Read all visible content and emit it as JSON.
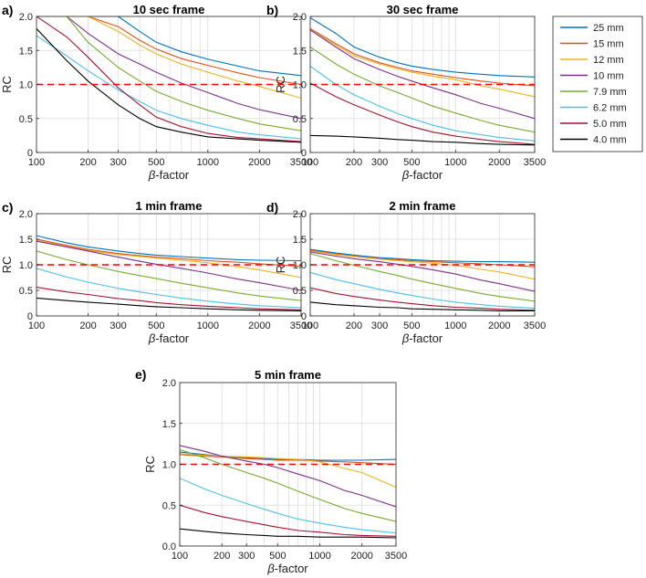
{
  "figure": {
    "ref_label": "RC",
    "ref_value": 1.0
  },
  "legend": {
    "placement": "top-right",
    "entries": [
      {
        "name": "25 mm",
        "color": "#0072BD"
      },
      {
        "name": "15 mm",
        "color": "#D95319"
      },
      {
        "name": "12 mm",
        "color": "#EDB120"
      },
      {
        "name": "10 mm",
        "color": "#7E2F8E"
      },
      {
        "name": "7.9 mm",
        "color": "#77AC30"
      },
      {
        "name": "6.2 mm",
        "color": "#4DBEEE"
      },
      {
        "name": "5.0 mm",
        "color": "#A2142F"
      },
      {
        "name": "4.0 mm",
        "color": "#000000"
      }
    ]
  },
  "chart_data": [
    {
      "type": "line",
      "panel": "a)",
      "title": "10 sec frame",
      "xlabel": "β-factor",
      "ylabel": "RC",
      "xscale": "log",
      "xlim": [
        100,
        3500
      ],
      "ylim": [
        0,
        2.0
      ],
      "xticks": [
        100,
        200,
        300,
        500,
        1000,
        2000,
        3500
      ],
      "yticks": [
        0,
        0.5,
        1.0,
        1.5,
        2.0
      ],
      "ytick_labels": [
        "0",
        "0.5",
        "1.0",
        "1.5",
        "2.0"
      ],
      "grid": true,
      "reference_line": 1.0,
      "x": [
        100,
        150,
        200,
        300,
        400,
        500,
        700,
        1000,
        1500,
        2000,
        3500
      ],
      "series": [
        {
          "name": "25 mm",
          "values": [
            2.0,
            2.0,
            2.0,
            2.0,
            1.78,
            1.62,
            1.48,
            1.37,
            1.27,
            1.2,
            1.13
          ]
        },
        {
          "name": "15 mm",
          "values": [
            2.0,
            2.0,
            2.0,
            1.85,
            1.65,
            1.52,
            1.38,
            1.28,
            1.17,
            1.1,
            1.0
          ]
        },
        {
          "name": "12 mm",
          "values": [
            2.0,
            2.0,
            2.0,
            1.78,
            1.58,
            1.45,
            1.3,
            1.18,
            1.05,
            0.97,
            0.8
          ]
        },
        {
          "name": "10 mm",
          "values": [
            2.0,
            2.0,
            1.75,
            1.45,
            1.3,
            1.18,
            1.02,
            0.88,
            0.72,
            0.63,
            0.5
          ]
        },
        {
          "name": "7.9 mm",
          "values": [
            2.0,
            2.0,
            1.62,
            1.25,
            1.05,
            0.9,
            0.75,
            0.62,
            0.5,
            0.42,
            0.32
          ]
        },
        {
          "name": "6.2 mm",
          "values": [
            1.72,
            1.42,
            1.2,
            0.92,
            0.75,
            0.62,
            0.5,
            0.4,
            0.3,
            0.26,
            0.2
          ]
        },
        {
          "name": "5.0 mm",
          "values": [
            2.0,
            1.7,
            1.4,
            0.95,
            0.7,
            0.52,
            0.38,
            0.28,
            0.22,
            0.2,
            0.16
          ]
        },
        {
          "name": "4.0 mm",
          "values": [
            1.82,
            1.35,
            1.05,
            0.7,
            0.5,
            0.38,
            0.3,
            0.23,
            0.2,
            0.18,
            0.15
          ]
        }
      ]
    },
    {
      "type": "line",
      "panel": "b)",
      "title": "30 sec frame",
      "xlabel": "β-factor",
      "ylabel": "RC",
      "xscale": "log",
      "xlim": [
        100,
        3500
      ],
      "ylim": [
        0,
        2.0
      ],
      "xticks": [
        100,
        200,
        300,
        500,
        1000,
        2000,
        3500
      ],
      "yticks": [
        0,
        0.5,
        1.0,
        1.5,
        2.0
      ],
      "ytick_labels": [
        "0",
        "0.5",
        "1.0",
        "1.5",
        "2.0"
      ],
      "grid": true,
      "reference_line": 1.0,
      "x": [
        100,
        150,
        200,
        300,
        400,
        500,
        700,
        1000,
        1500,
        2000,
        3500
      ],
      "series": [
        {
          "name": "25 mm",
          "values": [
            1.98,
            1.75,
            1.55,
            1.4,
            1.32,
            1.27,
            1.22,
            1.18,
            1.15,
            1.13,
            1.11
          ]
        },
        {
          "name": "15 mm",
          "values": [
            1.82,
            1.6,
            1.45,
            1.32,
            1.25,
            1.2,
            1.15,
            1.1,
            1.05,
            1.02,
            0.98
          ]
        },
        {
          "name": "12 mm",
          "values": [
            1.8,
            1.58,
            1.42,
            1.3,
            1.23,
            1.18,
            1.12,
            1.07,
            0.98,
            0.93,
            0.82
          ]
        },
        {
          "name": "10 mm",
          "values": [
            1.8,
            1.55,
            1.38,
            1.22,
            1.12,
            1.05,
            0.95,
            0.85,
            0.72,
            0.65,
            0.5
          ]
        },
        {
          "name": "7.9 mm",
          "values": [
            1.55,
            1.3,
            1.15,
            0.98,
            0.88,
            0.8,
            0.68,
            0.58,
            0.47,
            0.4,
            0.3
          ]
        },
        {
          "name": "6.2 mm",
          "values": [
            1.27,
            1.0,
            0.85,
            0.68,
            0.57,
            0.5,
            0.4,
            0.32,
            0.26,
            0.22,
            0.17
          ]
        },
        {
          "name": "5.0 mm",
          "values": [
            1.02,
            0.82,
            0.7,
            0.55,
            0.45,
            0.38,
            0.3,
            0.24,
            0.19,
            0.16,
            0.12
          ]
        },
        {
          "name": "4.0 mm",
          "values": [
            0.25,
            0.24,
            0.23,
            0.21,
            0.19,
            0.18,
            0.16,
            0.15,
            0.13,
            0.12,
            0.11
          ]
        }
      ]
    },
    {
      "type": "line",
      "panel": "c)",
      "title": "1 min frame",
      "xlabel": "β-factor",
      "ylabel": "RC",
      "xscale": "log",
      "xlim": [
        100,
        3500
      ],
      "ylim": [
        0,
        2.0
      ],
      "xticks": [
        100,
        200,
        300,
        500,
        1000,
        2000,
        3500
      ],
      "yticks": [
        0,
        0.5,
        1.0,
        1.5,
        2.0
      ],
      "ytick_labels": [
        "0",
        "0.5",
        "1.0",
        "1.5",
        "2.0"
      ],
      "grid": true,
      "reference_line": 1.0,
      "x": [
        100,
        150,
        200,
        300,
        400,
        500,
        700,
        1000,
        1500,
        2000,
        3500
      ],
      "series": [
        {
          "name": "25 mm",
          "values": [
            1.57,
            1.43,
            1.35,
            1.27,
            1.22,
            1.19,
            1.16,
            1.13,
            1.1,
            1.09,
            1.08
          ]
        },
        {
          "name": "15 mm",
          "values": [
            1.5,
            1.38,
            1.3,
            1.22,
            1.18,
            1.15,
            1.12,
            1.08,
            1.05,
            1.02,
            0.97
          ]
        },
        {
          "name": "12 mm",
          "values": [
            1.48,
            1.36,
            1.28,
            1.2,
            1.16,
            1.13,
            1.09,
            1.04,
            0.96,
            0.9,
            0.75
          ]
        },
        {
          "name": "10 mm",
          "values": [
            1.46,
            1.35,
            1.27,
            1.15,
            1.07,
            1.01,
            0.93,
            0.84,
            0.72,
            0.65,
            0.5
          ]
        },
        {
          "name": "7.9 mm",
          "values": [
            1.27,
            1.1,
            1.0,
            0.87,
            0.79,
            0.73,
            0.64,
            0.55,
            0.45,
            0.39,
            0.3
          ]
        },
        {
          "name": "6.2 mm",
          "values": [
            0.93,
            0.76,
            0.66,
            0.54,
            0.47,
            0.42,
            0.35,
            0.29,
            0.23,
            0.2,
            0.16
          ]
        },
        {
          "name": "5.0 mm",
          "values": [
            0.56,
            0.47,
            0.42,
            0.34,
            0.3,
            0.26,
            0.22,
            0.19,
            0.16,
            0.14,
            0.12
          ]
        },
        {
          "name": "4.0 mm",
          "values": [
            0.35,
            0.3,
            0.27,
            0.23,
            0.2,
            0.18,
            0.16,
            0.14,
            0.12,
            0.11,
            0.1
          ]
        }
      ]
    },
    {
      "type": "line",
      "panel": "d)",
      "title": "2 min frame",
      "xlabel": "β-factor",
      "ylabel": "RC",
      "xscale": "log",
      "xlim": [
        100,
        3500
      ],
      "ylim": [
        0,
        2.0
      ],
      "xticks": [
        100,
        200,
        300,
        500,
        1000,
        2000,
        3500
      ],
      "yticks": [
        0,
        0.5,
        1.0,
        1.5,
        2.0
      ],
      "ytick_labels": [
        "0",
        "0.5",
        "1.0",
        "1.5",
        "2.0"
      ],
      "grid": true,
      "reference_line": 1.0,
      "x": [
        100,
        150,
        200,
        300,
        400,
        500,
        700,
        1000,
        1500,
        2000,
        3500
      ],
      "series": [
        {
          "name": "25 mm",
          "values": [
            1.3,
            1.23,
            1.19,
            1.14,
            1.12,
            1.1,
            1.08,
            1.07,
            1.06,
            1.06,
            1.05
          ]
        },
        {
          "name": "15 mm",
          "values": [
            1.28,
            1.21,
            1.17,
            1.12,
            1.1,
            1.08,
            1.06,
            1.04,
            1.02,
            1.0,
            0.96
          ]
        },
        {
          "name": "12 mm",
          "values": [
            1.27,
            1.2,
            1.16,
            1.11,
            1.08,
            1.06,
            1.03,
            0.99,
            0.91,
            0.86,
            0.72
          ]
        },
        {
          "name": "10 mm",
          "values": [
            1.25,
            1.17,
            1.12,
            1.06,
            1.01,
            0.97,
            0.9,
            0.82,
            0.7,
            0.63,
            0.48
          ]
        },
        {
          "name": "7.9 mm",
          "values": [
            1.22,
            1.08,
            0.99,
            0.87,
            0.79,
            0.72,
            0.63,
            0.54,
            0.44,
            0.38,
            0.29
          ]
        },
        {
          "name": "6.2 mm",
          "values": [
            0.85,
            0.71,
            0.63,
            0.52,
            0.45,
            0.4,
            0.33,
            0.27,
            0.22,
            0.19,
            0.15
          ]
        },
        {
          "name": "5.0 mm",
          "values": [
            0.55,
            0.44,
            0.38,
            0.31,
            0.27,
            0.24,
            0.2,
            0.17,
            0.15,
            0.13,
            0.11
          ]
        },
        {
          "name": "4.0 mm",
          "values": [
            0.27,
            0.22,
            0.2,
            0.17,
            0.16,
            0.14,
            0.13,
            0.12,
            0.11,
            0.1,
            0.1
          ]
        }
      ]
    },
    {
      "type": "line",
      "panel": "e)",
      "title": "5 min frame",
      "xlabel": "β-factor",
      "ylabel": "RC",
      "xscale": "log",
      "xlim": [
        100,
        3500
      ],
      "ylim": [
        0,
        2.0
      ],
      "xticks": [
        100,
        200,
        300,
        500,
        1000,
        2000,
        3500
      ],
      "yticks": [
        0,
        0.5,
        1.0,
        1.5,
        2.0
      ],
      "ytick_labels": [
        "0.0",
        "0.5",
        "1.0",
        "1.5",
        "2.0"
      ],
      "grid": true,
      "reference_line": 1.0,
      "x": [
        100,
        150,
        200,
        300,
        400,
        500,
        700,
        1000,
        1500,
        2000,
        3500
      ],
      "series": [
        {
          "name": "25 mm",
          "values": [
            1.15,
            1.12,
            1.1,
            1.08,
            1.07,
            1.06,
            1.06,
            1.05,
            1.05,
            1.05,
            1.06
          ]
        },
        {
          "name": "15 mm",
          "values": [
            1.12,
            1.1,
            1.09,
            1.07,
            1.06,
            1.05,
            1.05,
            1.04,
            1.03,
            1.02,
            1.0
          ]
        },
        {
          "name": "12 mm",
          "values": [
            1.13,
            1.11,
            1.1,
            1.09,
            1.08,
            1.07,
            1.06,
            1.03,
            0.95,
            0.9,
            0.72
          ]
        },
        {
          "name": "10 mm",
          "values": [
            1.23,
            1.16,
            1.1,
            1.04,
            1.0,
            0.96,
            0.88,
            0.8,
            0.68,
            0.62,
            0.48
          ]
        },
        {
          "name": "7.9 mm",
          "values": [
            1.18,
            1.08,
            1.0,
            0.9,
            0.83,
            0.77,
            0.67,
            0.57,
            0.46,
            0.4,
            0.3
          ]
        },
        {
          "name": "6.2 mm",
          "values": [
            0.83,
            0.7,
            0.62,
            0.52,
            0.45,
            0.4,
            0.33,
            0.28,
            0.23,
            0.2,
            0.16
          ]
        },
        {
          "name": "5.0 mm",
          "values": [
            0.5,
            0.41,
            0.36,
            0.3,
            0.26,
            0.23,
            0.19,
            0.17,
            0.14,
            0.13,
            0.12
          ]
        },
        {
          "name": "4.0 mm",
          "values": [
            0.21,
            0.18,
            0.16,
            0.14,
            0.13,
            0.12,
            0.12,
            0.11,
            0.11,
            0.11,
            0.1
          ]
        }
      ]
    }
  ]
}
